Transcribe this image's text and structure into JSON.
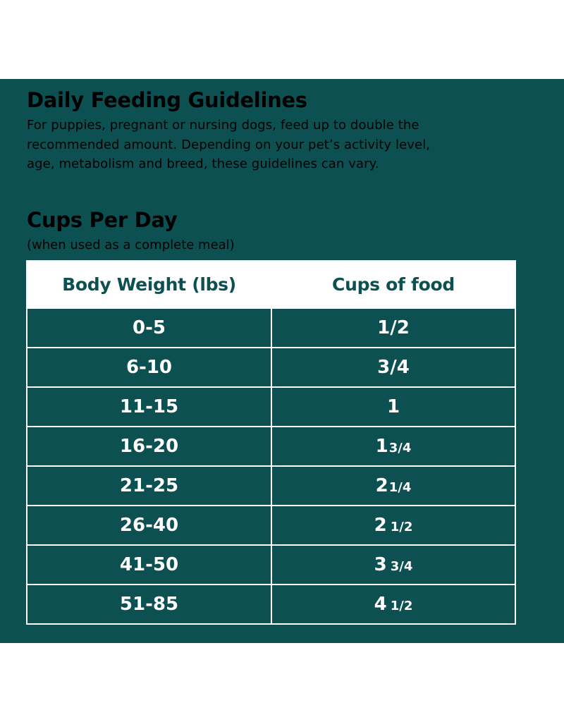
{
  "heading": "Daily Feeding Guidelines",
  "intro": "For puppies, pregnant or nursing dogs, feed up to double the recommended amount. Depending on your pet’s activity level, age, metabolism and breed, these guidelines can vary.",
  "subheading": "Cups Per Day",
  "subnote": "(when used as a complete meal)",
  "table": {
    "headers": [
      "Body Weight (lbs)",
      "Cups of food"
    ],
    "rows": [
      {
        "weight": "0-5",
        "whole": "",
        "frac": "1/2",
        "whole_style": "none"
      },
      {
        "weight": "6-10",
        "whole": "",
        "frac": "3/4",
        "whole_style": "none"
      },
      {
        "weight": "11-15",
        "whole": "1",
        "frac": ""
      },
      {
        "weight": "16-20",
        "whole": "1",
        "frac": "3/4"
      },
      {
        "weight": "21-25",
        "whole": "2",
        "frac": "1/4"
      },
      {
        "weight": "26-40",
        "whole": "2",
        "frac": "1/2"
      },
      {
        "weight": "41-50",
        "whole": "3",
        "frac": "3/4"
      },
      {
        "weight": "51-85",
        "whole": "4",
        "frac": "1/2"
      }
    ]
  },
  "colors": {
    "background": "#0d5052",
    "header_bg": "#ffffff",
    "text": "#ffffff"
  }
}
